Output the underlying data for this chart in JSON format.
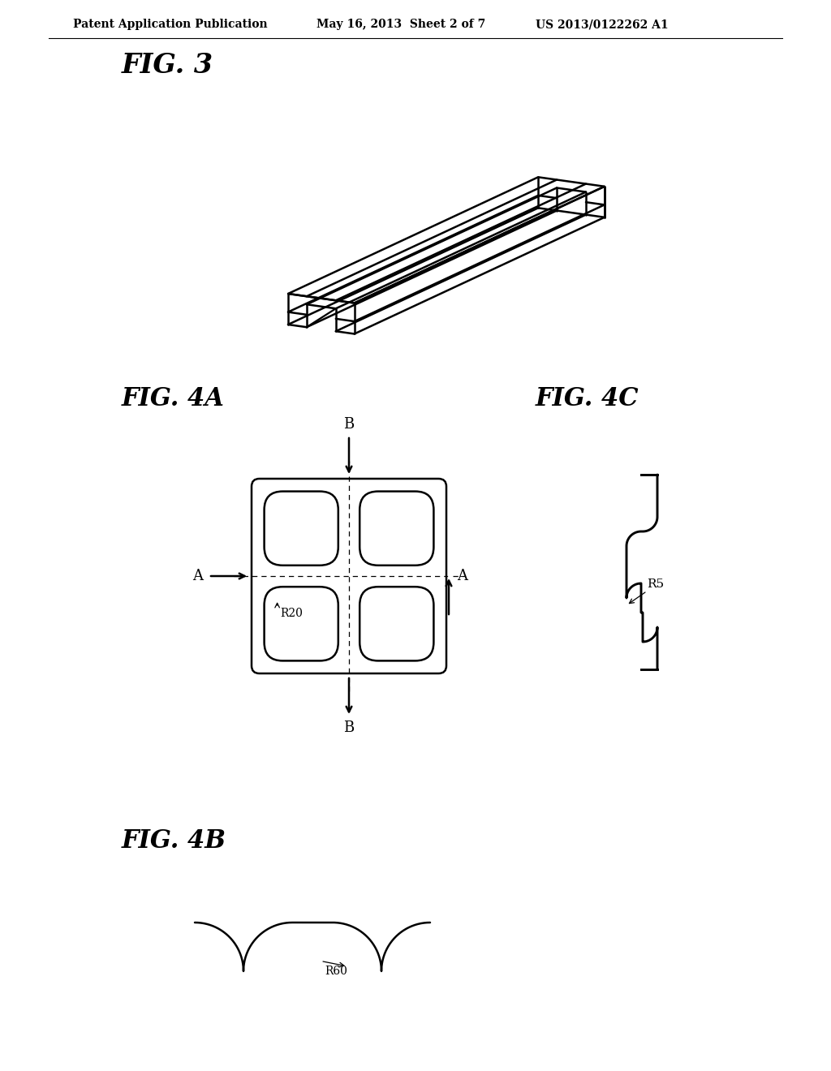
{
  "background_color": "#ffffff",
  "header_left": "Patent Application Publication",
  "header_mid": "May 16, 2013  Sheet 2 of 7",
  "header_right": "US 2013/0122262 A1",
  "fig3_label": "FIG. 3",
  "fig4a_label": "FIG. 4A",
  "fig4b_label": "FIG. 4B",
  "fig4c_label": "FIG. 4C",
  "line_color": "#000000",
  "line_width": 1.8
}
